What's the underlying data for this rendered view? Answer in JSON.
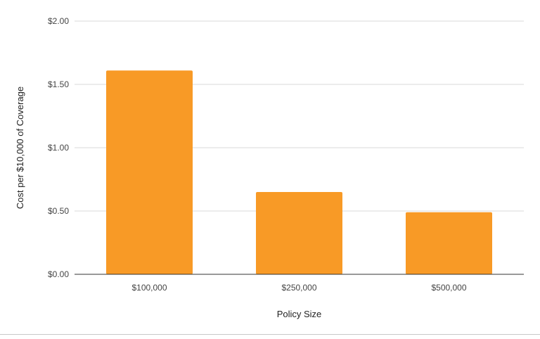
{
  "chart_data": {
    "type": "bar",
    "categories": [
      "$100,000",
      "$250,000",
      "$500,000"
    ],
    "values": [
      1.61,
      0.65,
      0.49
    ],
    "xlabel": "Policy Size",
    "ylabel": "Cost per $10,000 of Coverage",
    "ylim": [
      0,
      2
    ],
    "yticks": [
      0,
      0.5,
      1,
      1.5,
      2
    ],
    "ytick_labels": [
      "$0.00",
      "$0.50",
      "$1.00",
      "$1.50",
      "$2.00"
    ],
    "grid": true,
    "legend": "none",
    "bar_color": "#F89A26",
    "gridline_color": "#D9D9D9",
    "axis_color": "#333333"
  }
}
